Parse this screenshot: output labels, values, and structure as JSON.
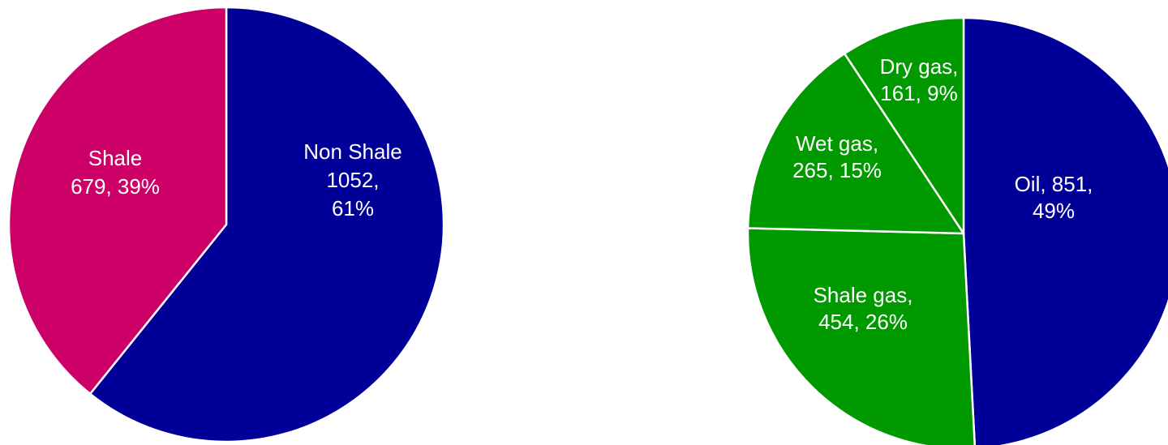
{
  "chart_data": [
    {
      "type": "pie",
      "title": "",
      "colors": {
        "Non Shale": "#000099",
        "Shale": "#cc0066"
      },
      "slices": [
        {
          "name": "Non Shale",
          "value": 1052,
          "percent": 61,
          "label_lines": [
            "Non Shale",
            "1052,",
            "61%"
          ]
        },
        {
          "name": "Shale",
          "value": 679,
          "percent": 39,
          "label_lines": [
            "Shale",
            "679, 39%"
          ]
        }
      ]
    },
    {
      "type": "pie",
      "title": "",
      "colors": {
        "Oil": "#000099",
        "Shale gas": "#009900",
        "Wet gas": "#009900",
        "Dry gas": "#009900"
      },
      "slices": [
        {
          "name": "Oil",
          "value": 851,
          "percent": 49,
          "label_lines": [
            "Oil, 851,",
            "49%"
          ]
        },
        {
          "name": "Shale gas",
          "value": 454,
          "percent": 26,
          "label_lines": [
            "Shale gas,",
            "454, 26%"
          ]
        },
        {
          "name": "Wet gas",
          "value": 265,
          "percent": 15,
          "label_lines": [
            "Wet gas,",
            "265, 15%"
          ]
        },
        {
          "name": "Dry gas",
          "value": 161,
          "percent": 9,
          "label_lines": [
            "Dry gas,",
            "161, 9%"
          ]
        }
      ]
    }
  ]
}
